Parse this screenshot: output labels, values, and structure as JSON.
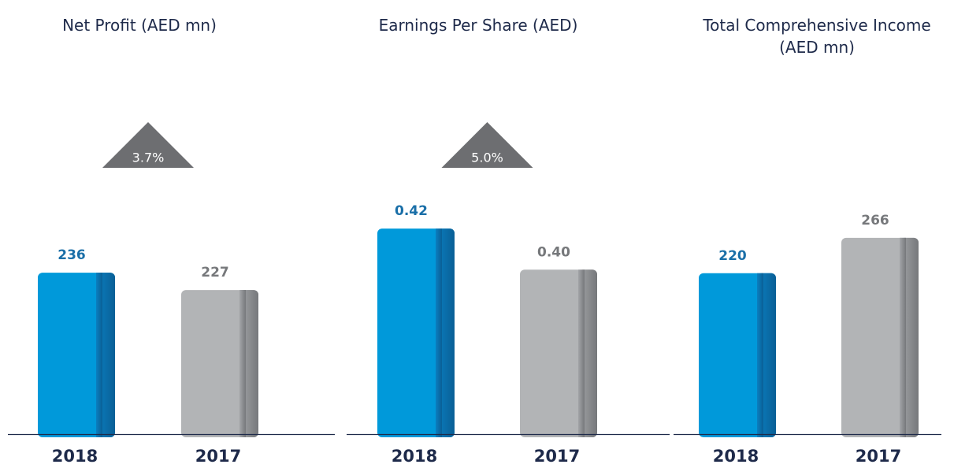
{
  "chart_data": [
    {
      "type": "bar",
      "title": "Net Profit (AED mn)",
      "categories": [
        "2018",
        "2017"
      ],
      "values": [
        236,
        227
      ],
      "colors": [
        "#0099da",
        "#b2b4b6"
      ],
      "ylim": [
        152,
        275
      ],
      "annotation": "3.7%"
    },
    {
      "type": "bar",
      "title": "Earnings Per Share (AED)",
      "categories": [
        "2018",
        "2017"
      ],
      "values": [
        0.42,
        0.4
      ],
      "value_labels": [
        "0.42",
        "0.40"
      ],
      "colors": [
        "#0099da",
        "#b2b4b6"
      ],
      "ylim": [
        0.32,
        0.435
      ],
      "annotation": "5.0%"
    },
    {
      "type": "bar",
      "title": "Total Comprehensive Income (AED mn)",
      "categories": [
        "2018",
        "2017"
      ],
      "values": [
        220,
        266
      ],
      "colors": [
        "#0099da",
        "#b2b4b6"
      ],
      "ylim": [
        11,
        318
      ]
    }
  ]
}
